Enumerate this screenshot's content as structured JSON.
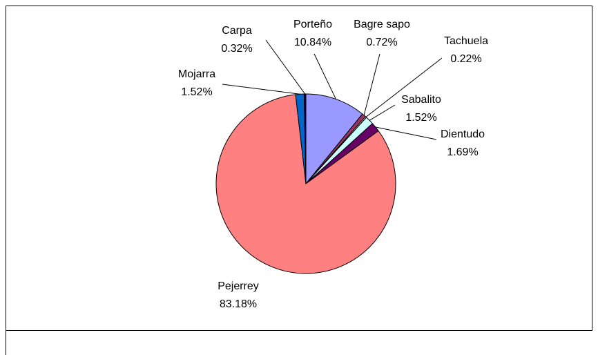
{
  "chart_data": {
    "type": "pie",
    "categories": [
      "Porteño",
      "Bagre sapo",
      "Tachuela",
      "Sabalito",
      "Dientudo",
      "Pejerrey",
      "Mojarra",
      "Carpa"
    ],
    "values": [
      10.84,
      0.72,
      0.22,
      1.52,
      1.69,
      83.18,
      1.52,
      0.32
    ],
    "value_labels": [
      "10.84%",
      "0.72%",
      "0.22%",
      "1.52%",
      "1.69%",
      "83.18%",
      "1.52%",
      "0.32%"
    ],
    "colors": [
      "#9999ff",
      "#993366",
      "#ffffcc",
      "#ccffff",
      "#660066",
      "#ff8080",
      "#0066cc",
      "#000080"
    ]
  }
}
